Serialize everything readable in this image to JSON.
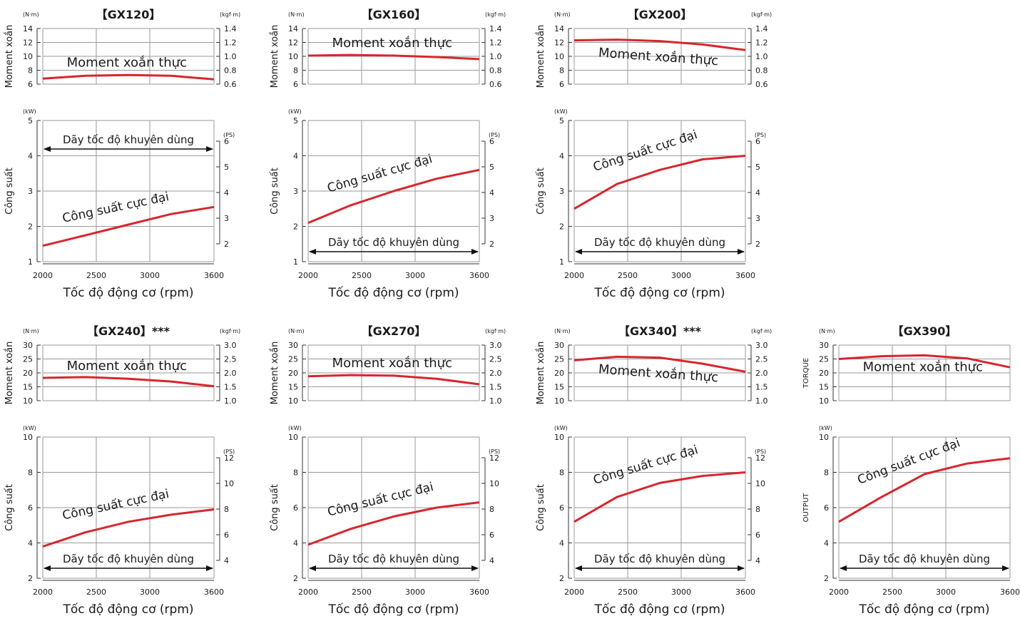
{
  "chart_data": [
    {
      "type": "line",
      "title": "【GX120】",
      "xlabel": "Tốc độ động cơ (rpm)",
      "x_ticks": [
        2000,
        2500,
        3000,
        3600
      ],
      "torque": {
        "ylabel": "Moment xoắn",
        "unit_left": "(N·m)",
        "unit_right": "(kgf·m)",
        "ylim": [
          6,
          14
        ],
        "ticks_left": [
          6,
          8,
          10,
          12,
          14
        ],
        "ticks_right": [
          "0.6",
          "0.8",
          "1.0",
          "1.2",
          "1.4"
        ],
        "series": [
          {
            "name": "Moment xoắn thực",
            "x": [
              2000,
              2400,
              2800,
              3200,
              3600
            ],
            "y": [
              6.8,
              7.2,
              7.3,
              7.2,
              6.7
            ]
          }
        ]
      },
      "power": {
        "ylabel": "Công suất",
        "unit_left": "(kW)",
        "unit_right": "(PS)",
        "ylim": [
          1,
          5
        ],
        "ticks_left": [
          1,
          2,
          3,
          4,
          5
        ],
        "ticks_right": [
          "2",
          "3",
          "4",
          "5",
          "6"
        ],
        "series": [
          {
            "name": "Công suất cực đại",
            "x": [
              2000,
              2400,
              2800,
              3200,
              3600
            ],
            "y": [
              1.45,
              1.75,
              2.05,
              2.35,
              2.55
            ]
          }
        ],
        "range_label": "Dãy tốc độ khuyên dùng",
        "range": [
          2000,
          3600
        ]
      }
    },
    {
      "type": "line",
      "title": "【GX160】",
      "xlabel": "Tốc độ động cơ (rpm)",
      "x_ticks": [
        2000,
        2500,
        3000,
        3600
      ],
      "torque": {
        "ylabel": "Moment xoắn",
        "unit_left": "(N·m)",
        "unit_right": "(kgf·m)",
        "ylim": [
          6,
          14
        ],
        "ticks_left": [
          6,
          8,
          10,
          12,
          14
        ],
        "ticks_right": [
          "0.6",
          "0.8",
          "1.0",
          "1.2",
          "1.4"
        ],
        "series": [
          {
            "name": "Moment xoắn thực",
            "x": [
              2000,
              2400,
              2800,
              3200,
              3600
            ],
            "y": [
              10.1,
              10.2,
              10.1,
              9.9,
              9.6
            ]
          }
        ]
      },
      "power": {
        "ylabel": "Công suất",
        "unit_left": "(kW)",
        "unit_right": "(PS)",
        "ylim": [
          1,
          5
        ],
        "ticks_left": [
          1,
          2,
          3,
          4,
          5
        ],
        "ticks_right": [
          "2",
          "3",
          "4",
          "5",
          "6"
        ],
        "series": [
          {
            "name": "Công suất cực đại",
            "x": [
              2000,
              2400,
              2800,
              3200,
              3600
            ],
            "y": [
              2.1,
              2.6,
              3.0,
              3.35,
              3.6
            ]
          }
        ],
        "range_label": "Dãy tốc độ khuyên dùng",
        "range": [
          2000,
          3600
        ]
      }
    },
    {
      "type": "line",
      "title": "【GX200】",
      "xlabel": "Tốc độ động cơ (rpm)",
      "x_ticks": [
        2000,
        2500,
        3000,
        3600
      ],
      "torque": {
        "ylabel": "Moment xoắn",
        "unit_left": "(N·m)",
        "unit_right": "(kgf·m)",
        "ylim": [
          6,
          14
        ],
        "ticks_left": [
          6,
          8,
          10,
          12,
          14
        ],
        "ticks_right": [
          "0.6",
          "0.8",
          "1.0",
          "1.2",
          "1.4"
        ],
        "series": [
          {
            "name": "Moment xoắn thực",
            "x": [
              2000,
              2400,
              2800,
              3200,
              3600
            ],
            "y": [
              12.3,
              12.4,
              12.2,
              11.7,
              10.9
            ]
          }
        ]
      },
      "power": {
        "ylabel": "Công suất",
        "unit_left": "(kW)",
        "unit_right": "(PS)",
        "ylim": [
          1,
          5
        ],
        "ticks_left": [
          1,
          2,
          3,
          4,
          5
        ],
        "ticks_right": [
          "2",
          "3",
          "4",
          "5",
          "6"
        ],
        "series": [
          {
            "name": "Công suất cực đại",
            "x": [
              2000,
              2400,
              2800,
              3200,
              3600
            ],
            "y": [
              2.5,
              3.2,
              3.6,
              3.9,
              4.0
            ]
          }
        ],
        "range_label": "Dãy tốc độ khuyên dùng",
        "range": [
          2000,
          3600
        ]
      }
    },
    {
      "type": "line",
      "title": "【GX240】***",
      "xlabel": "Tốc độ động cơ (rpm)",
      "x_ticks": [
        2000,
        2500,
        3000,
        3600
      ],
      "torque": {
        "ylabel": "Moment xoắn",
        "unit_left": "(N·m)",
        "unit_right": "(kgf·m)",
        "ylim": [
          10,
          30
        ],
        "ticks_left": [
          10,
          15,
          20,
          25,
          30
        ],
        "ticks_right": [
          "1.0",
          "1.5",
          "2.0",
          "2.5",
          "3.0"
        ],
        "series": [
          {
            "name": "Moment xoắn thực",
            "x": [
              2000,
              2400,
              2800,
              3200,
              3600
            ],
            "y": [
              18.2,
              18.5,
              17.9,
              16.9,
              15.2
            ]
          }
        ]
      },
      "power": {
        "ylabel": "Công suất",
        "unit_left": "(kW)",
        "unit_right": "(PS)",
        "ylim": [
          2,
          10
        ],
        "ticks_left": [
          2,
          4,
          6,
          8,
          10
        ],
        "ticks_right": [
          "4",
          "6",
          "8",
          "10",
          "12"
        ],
        "series": [
          {
            "name": "Công suất cực đại",
            "x": [
              2000,
              2400,
              2800,
              3200,
              3600
            ],
            "y": [
              3.8,
              4.6,
              5.2,
              5.6,
              5.9
            ]
          }
        ],
        "range_label": "Dãy tốc độ khuyên dùng",
        "range": [
          2000,
          3600
        ]
      }
    },
    {
      "type": "line",
      "title": "【GX270】",
      "xlabel": "Tốc độ động cơ (rpm)",
      "x_ticks": [
        2000,
        2500,
        3000,
        3600
      ],
      "torque": {
        "ylabel": "Moment xoắn",
        "unit_left": "(N·m)",
        "unit_right": "(kgf·m)",
        "ylim": [
          10,
          30
        ],
        "ticks_left": [
          10,
          15,
          20,
          25,
          30
        ],
        "ticks_right": [
          "1.0",
          "1.5",
          "2.0",
          "2.5",
          "3.0"
        ],
        "series": [
          {
            "name": "Moment xoắn thực",
            "x": [
              2000,
              2400,
              2800,
              3200,
              3600
            ],
            "y": [
              18.8,
              19.2,
              19.0,
              17.9,
              15.9
            ]
          }
        ]
      },
      "power": {
        "ylabel": "Công suất",
        "unit_left": "(kW)",
        "unit_right": "(PS)",
        "ylim": [
          2,
          10
        ],
        "ticks_left": [
          2,
          4,
          6,
          8,
          10
        ],
        "ticks_right": [
          "4",
          "6",
          "8",
          "10",
          "12"
        ],
        "series": [
          {
            "name": "Công suất cực đại",
            "x": [
              2000,
              2400,
              2800,
              3200,
              3600
            ],
            "y": [
              3.9,
              4.8,
              5.5,
              6.0,
              6.3
            ]
          }
        ],
        "range_label": "Dãy tốc độ khuyên dùng",
        "range": [
          2000,
          3600
        ]
      }
    },
    {
      "type": "line",
      "title": "【GX340】***",
      "xlabel": "Tốc độ động cơ (rpm)",
      "x_ticks": [
        2000,
        2500,
        3000,
        3600
      ],
      "torque": {
        "ylabel": "Moment xoắn",
        "unit_left": "(N·m)",
        "unit_right": "(kgf·m)",
        "ylim": [
          10,
          30
        ],
        "ticks_left": [
          10,
          15,
          20,
          25,
          30
        ],
        "ticks_right": [
          "1.0",
          "1.5",
          "2.0",
          "2.5",
          "3.0"
        ],
        "series": [
          {
            "name": "Moment xoắn thực",
            "x": [
              2000,
              2400,
              2800,
              3200,
              3600
            ],
            "y": [
              24.5,
              25.8,
              25.5,
              23.3,
              20.4
            ]
          }
        ]
      },
      "power": {
        "ylabel": "Công suất",
        "unit_left": "(kW)",
        "unit_right": "(PS)",
        "ylim": [
          2,
          10
        ],
        "ticks_left": [
          2,
          4,
          6,
          8,
          10
        ],
        "ticks_right": [
          "4",
          "6",
          "8",
          "10",
          "12"
        ],
        "series": [
          {
            "name": "Công suất cực đại",
            "x": [
              2000,
              2400,
              2800,
              3200,
              3600
            ],
            "y": [
              5.2,
              6.6,
              7.4,
              7.8,
              8.0
            ]
          }
        ],
        "range_label": "Dãy tốc độ khuyên dùng",
        "range": [
          2000,
          3600
        ]
      }
    },
    {
      "type": "line",
      "title": "【GX390】",
      "xlabel": "Tốc độ động cơ (rpm)",
      "x_ticks": [
        2000,
        2500,
        3000,
        3600
      ],
      "torque": {
        "ylabel": "TORQUE",
        "unit_left": "(N·m)",
        "unit_right": "",
        "ylim": [
          10,
          30
        ],
        "ticks_left": [
          10,
          15,
          20,
          25,
          30
        ],
        "ticks_right": [],
        "series": [
          {
            "name": "Moment xoắn thực",
            "x": [
              2000,
              2400,
              2800,
              3200,
              3600
            ],
            "y": [
              25.0,
              26.0,
              26.3,
              25.2,
              22.0
            ]
          }
        ]
      },
      "power": {
        "ylabel": "OUTPUT",
        "unit_left": "(kW)",
        "unit_right": "",
        "ylim": [
          2,
          10
        ],
        "ticks_left": [
          2,
          4,
          6,
          8,
          10
        ],
        "ticks_right": [],
        "series": [
          {
            "name": "Công suất cực đại",
            "x": [
              2000,
              2400,
              2800,
              3200,
              3600
            ],
            "y": [
              5.2,
              6.6,
              7.9,
              8.5,
              8.8
            ]
          }
        ],
        "range_label": "Dãy tốc độ khuyên dùng",
        "range": [
          2000,
          3600
        ]
      }
    }
  ],
  "colors": {
    "curve": "#d7262e",
    "grid": "#9a9a9a",
    "axis": "#333333",
    "text": "#1a1a1a"
  }
}
